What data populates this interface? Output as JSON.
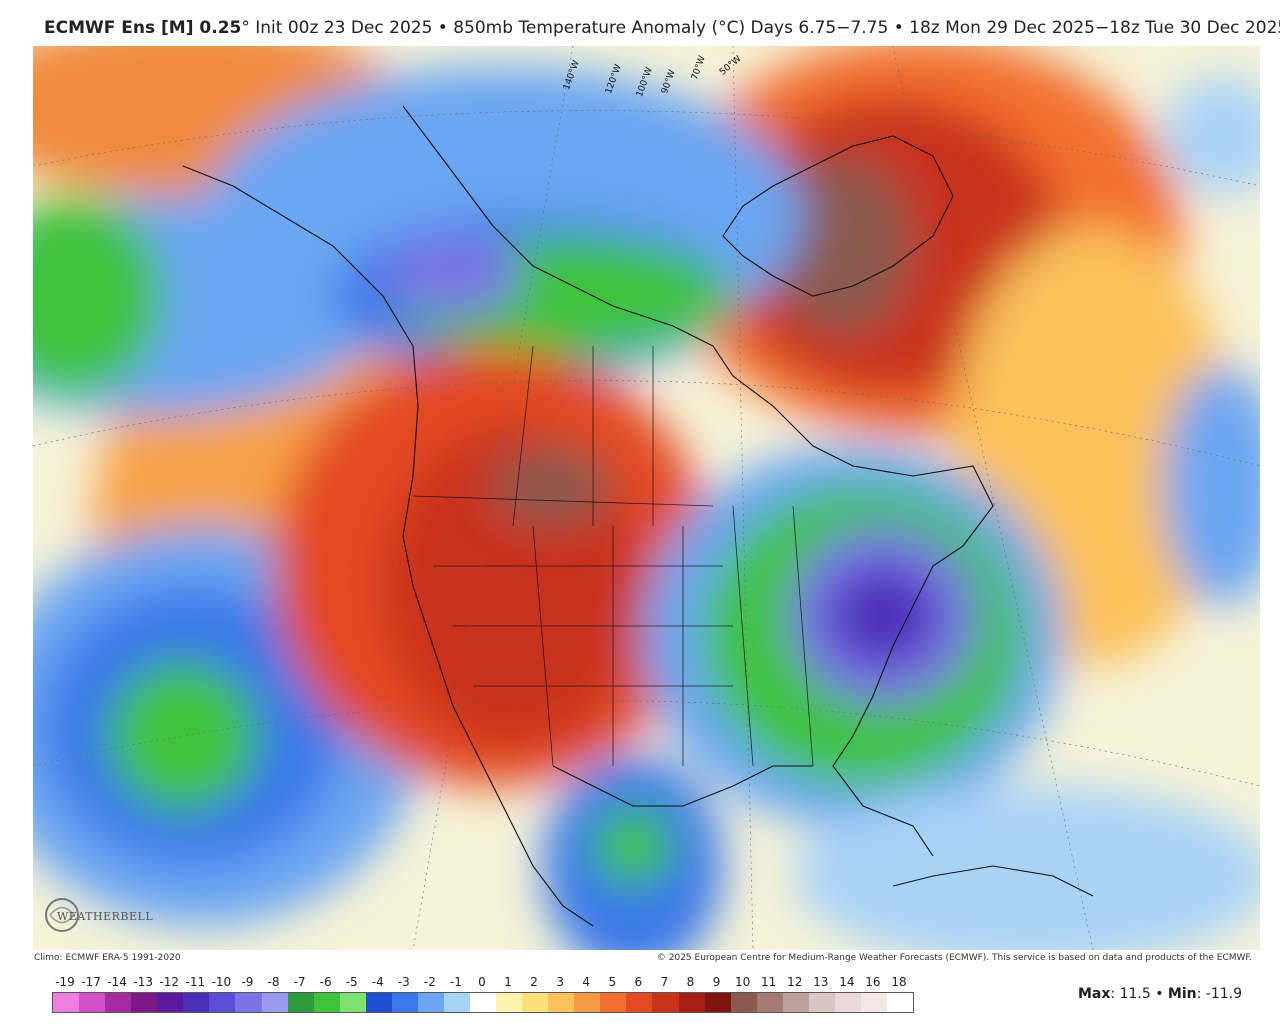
{
  "header": {
    "model": "ECMWF Ens [M] 0.25",
    "degree_mark": "°",
    "rest": " Init 00z 23 Dec 2025 • 850mb Temperature Anomaly (°C)   Days 6.75−7.75 • 18z Mon 29 Dec 2025−18z Tue 30 Dec 2025"
  },
  "footer": {
    "climo": "Climo: ECMWF ERA-5 1991-2020",
    "copyright": "© 2025 European Centre for Medium-Range Weather Forecasts (ECMWF). This service is based on data and products of the ECMWF.",
    "max_label": "Max",
    "max_value": ": 11.5 • ",
    "min_label": "Min",
    "min_value": ": -11.9"
  },
  "logo": {
    "text": "WEATHERBELL",
    "icon": "swirl-icon"
  },
  "longitude_labels": [
    "140°W",
    "120°W",
    "100°W",
    "90°W",
    "70°W",
    "50°W"
  ],
  "colorbar": {
    "ticks": [
      "-19",
      "-17",
      "-14",
      "-13",
      "-12",
      "-11",
      "-10",
      "-9",
      "-8",
      "-7",
      "-6",
      "-5",
      "-4",
      "-3",
      "-2",
      "-1",
      "0",
      "1",
      "2",
      "3",
      "4",
      "5",
      "6",
      "7",
      "8",
      "9",
      "10",
      "11",
      "12",
      "13",
      "14",
      "16",
      "18"
    ],
    "colors": [
      "#f07ee0",
      "#d14fc8",
      "#a62ba2",
      "#7e1a85",
      "#5b1a9e",
      "#4b2fb8",
      "#5a4fd6",
      "#7a74e6",
      "#9a9af0",
      "#2f9a3a",
      "#3fc23c",
      "#7fe26f",
      "#1f4fd0",
      "#3a78e8",
      "#6aa6f2",
      "#a9d2f7",
      "#ffffff",
      "#fff3b0",
      "#fde07a",
      "#fbc15a",
      "#f79a45",
      "#f2702f",
      "#e34a22",
      "#c9331a",
      "#a41f14",
      "#7e1510",
      "#8b5a50",
      "#a57a72",
      "#bfa19b",
      "#d8c6c2",
      "#ead9d6",
      "#f3e6e4",
      "#ffffff"
    ]
  }
}
